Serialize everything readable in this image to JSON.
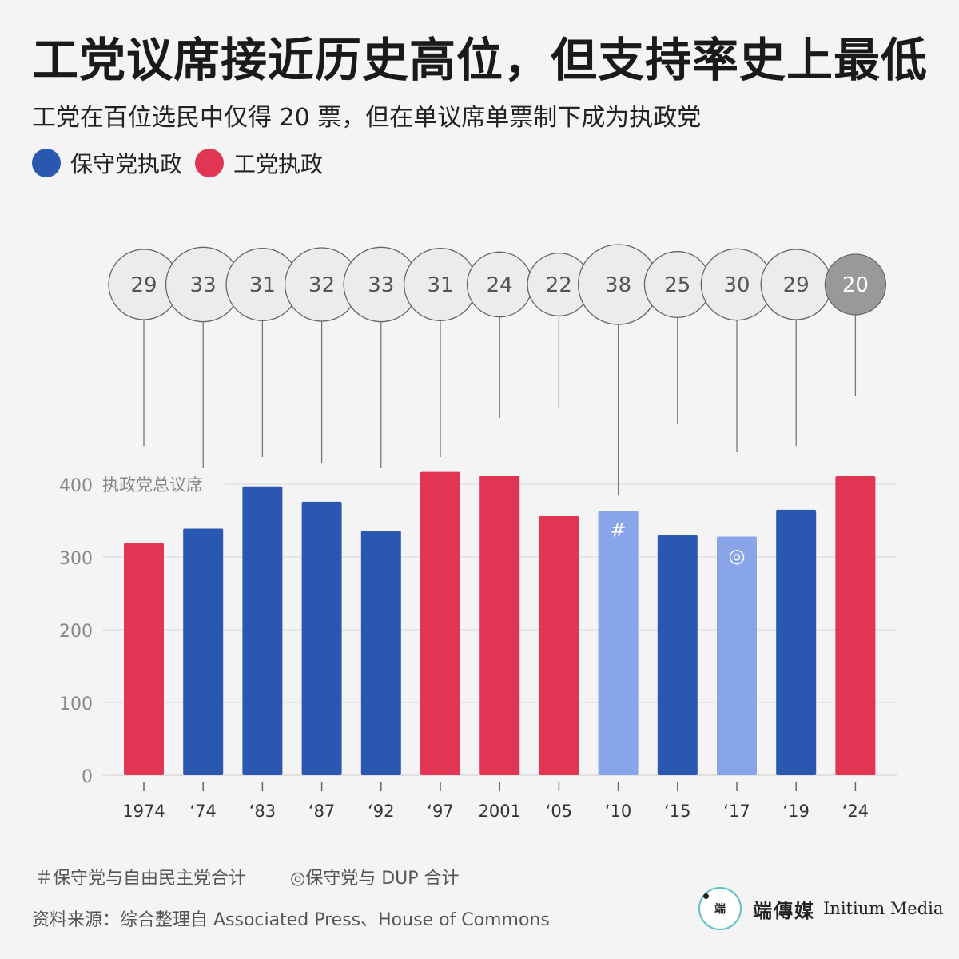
{
  "header": {
    "title": "工党议席接近历史高位，但支持率史上最低",
    "subtitle": "工党在百位选民中仅得 20 票，但在单议席单票制下成为执政党"
  },
  "legend": {
    "items": [
      {
        "label": "保守党执政",
        "color": "#2a57b0"
      },
      {
        "label": "工党执政",
        "color": "#e03553"
      }
    ]
  },
  "colors": {
    "conservative": "#2a57b0",
    "labour": "#e03553",
    "coalition": "#87a5e8",
    "bubble_fill": "#ececec",
    "bubble_highlight": "#999999",
    "grid": "#d8d8d8",
    "axis_text": "#888888"
  },
  "chart_data": {
    "type": "bar",
    "ylabel": "执政党总议席",
    "ylim": [
      0,
      400
    ],
    "yticks": [
      0,
      100,
      200,
      300,
      400
    ],
    "categories": [
      "1974",
      "‘74",
      "‘83",
      "‘87",
      "‘92",
      "‘97",
      "2001",
      "‘05",
      "‘10",
      "‘15",
      "‘17",
      "‘19",
      "‘24"
    ],
    "values": [
      319,
      339,
      397,
      376,
      336,
      418,
      412,
      356,
      363,
      330,
      328,
      365,
      411
    ],
    "party": [
      "labour",
      "conservative",
      "conservative",
      "conservative",
      "conservative",
      "labour",
      "labour",
      "labour",
      "coalition",
      "conservative",
      "coalition",
      "conservative",
      "labour"
    ],
    "bar_marks": [
      "",
      "",
      "",
      "",
      "",
      "",
      "",
      "",
      "#",
      "",
      "◎",
      "",
      ""
    ],
    "support_per_100_voters": [
      29,
      33,
      31,
      32,
      33,
      31,
      24,
      22,
      38,
      25,
      30,
      29,
      20
    ],
    "highlight_index": 12
  },
  "notes": {
    "hash": "＃保守党与自由民主党合计",
    "circle": "◎保守党与 DUP 合计"
  },
  "source": "资料来源：综合整理自 Associated Press、House of Commons",
  "brand": {
    "logo_text": "端",
    "name_cn": "端傳媒",
    "name_en": "Initium Media"
  }
}
